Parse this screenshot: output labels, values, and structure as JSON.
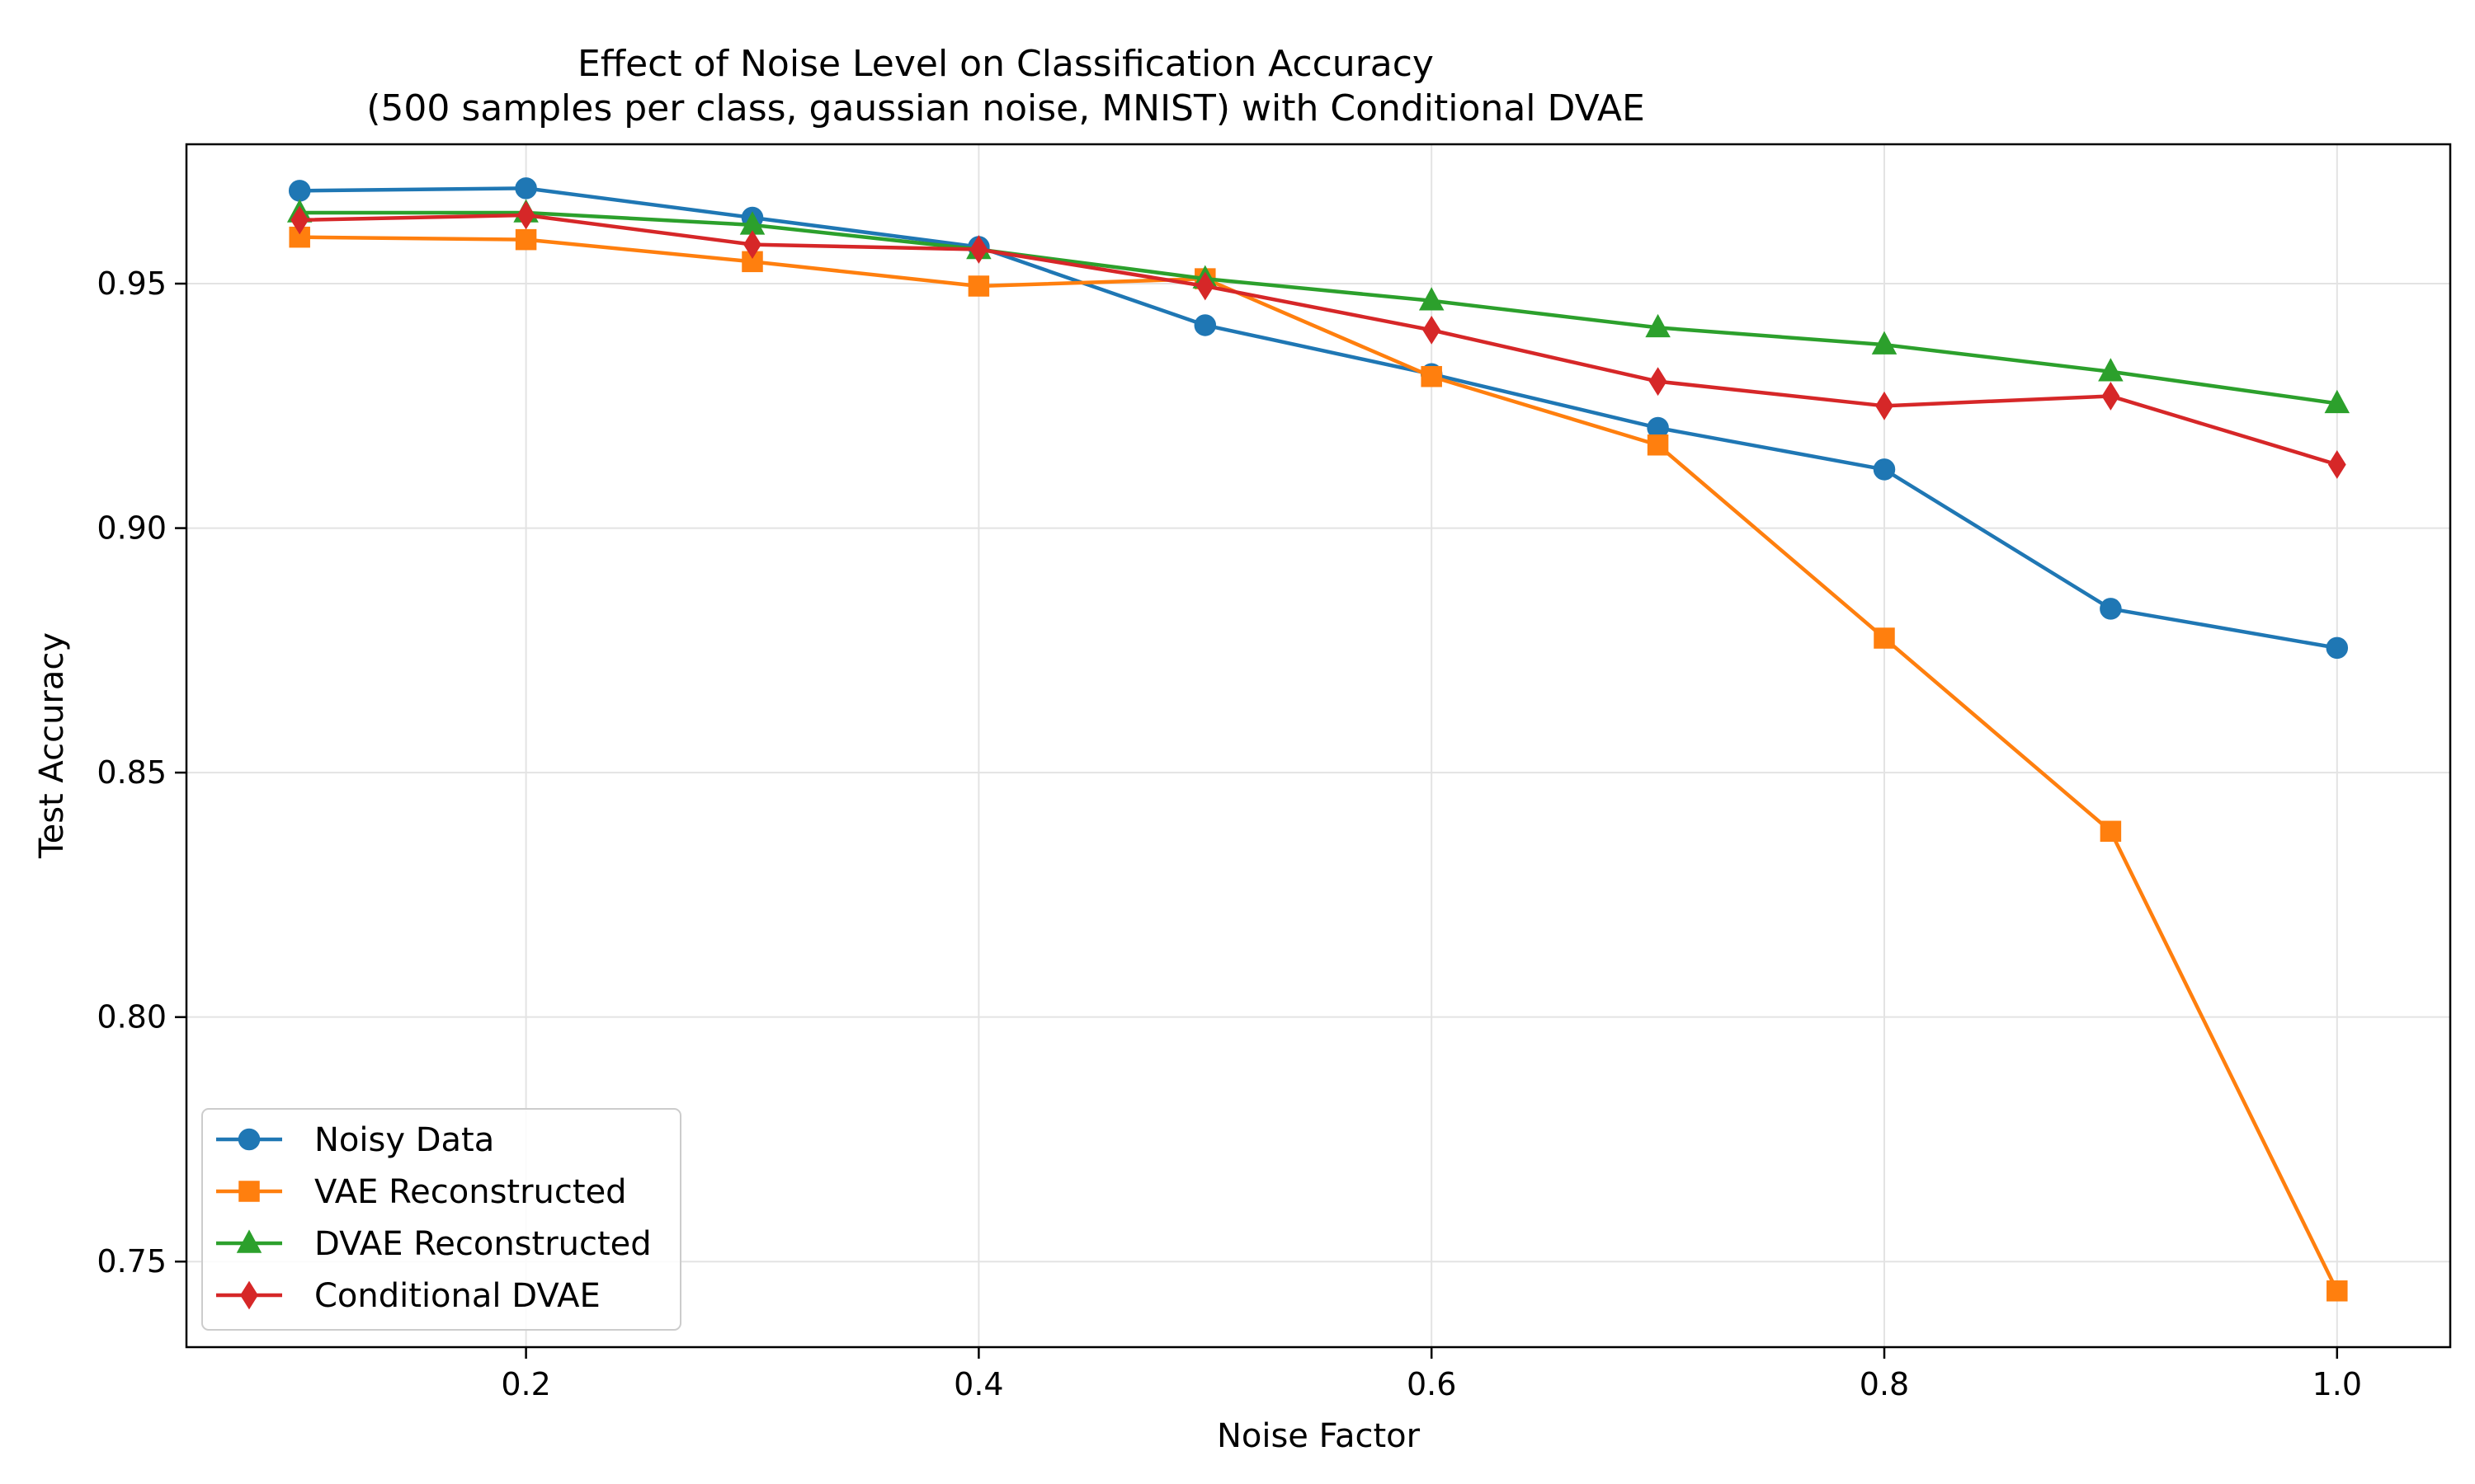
{
  "chart_data": {
    "type": "line",
    "title": "Effect of Noise Level on Classification Accuracy",
    "subtitle": "(500 samples per class, gaussian noise, MNIST) with Conditional DVAE",
    "xlabel": "Noise Factor",
    "ylabel": "Test Accuracy",
    "xlim": [
      0.05,
      1.05
    ],
    "ylim": [
      0.7325,
      0.9785
    ],
    "xticks": [
      0.2,
      0.4,
      0.6,
      0.8,
      1.0
    ],
    "xtick_labels": [
      "0.2",
      "0.4",
      "0.6",
      "0.8",
      "1.0"
    ],
    "yticks": [
      0.75,
      0.8,
      0.85,
      0.9,
      0.95
    ],
    "ytick_labels": [
      "0.75",
      "0.80",
      "0.85",
      "0.90",
      "0.95"
    ],
    "grid": true,
    "legend_position": "lower-left",
    "x": [
      0.1,
      0.2,
      0.3,
      0.4,
      0.5,
      0.6,
      0.7,
      0.8,
      0.9,
      1.0
    ],
    "series": [
      {
        "name": "Noisy Data",
        "color": "#1f77b4",
        "marker": "circle",
        "values": [
          0.969,
          0.9695,
          0.9635,
          0.9575,
          0.9415,
          0.9315,
          0.9205,
          0.912,
          0.8835,
          0.8755
        ]
      },
      {
        "name": "VAE Reconstructed",
        "color": "#ff7f0e",
        "marker": "square",
        "values": [
          0.9595,
          0.959,
          0.9545,
          0.9495,
          0.951,
          0.931,
          0.917,
          0.8775,
          0.838,
          0.744
        ]
      },
      {
        "name": "DVAE Reconstructed",
        "color": "#2ca02c",
        "marker": "triangle",
        "values": [
          0.9645,
          0.9645,
          0.962,
          0.957,
          0.951,
          0.9465,
          0.941,
          0.9375,
          0.932,
          0.9255
        ]
      },
      {
        "name": "Conditional DVAE",
        "color": "#d62728",
        "marker": "diamond",
        "values": [
          0.963,
          0.964,
          0.958,
          0.957,
          0.9495,
          0.9405,
          0.93,
          0.925,
          0.927,
          0.913
        ]
      }
    ]
  }
}
